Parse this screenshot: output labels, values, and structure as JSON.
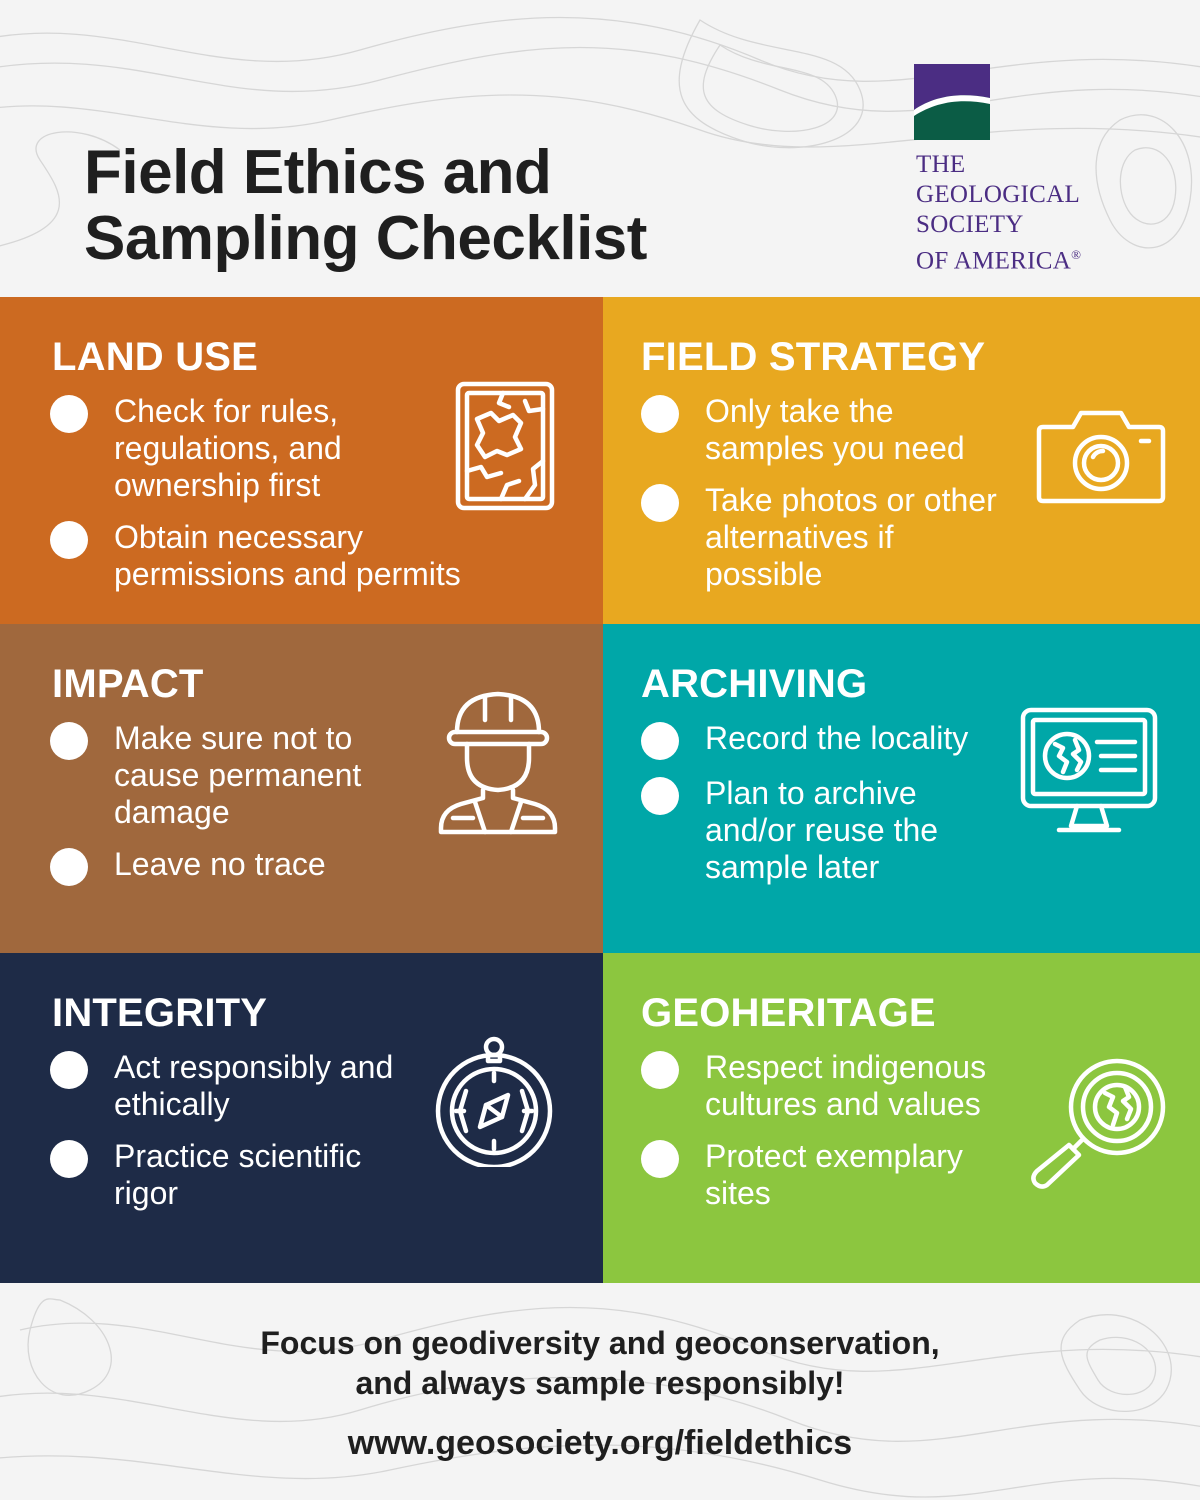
{
  "header": {
    "title_line1": "Field Ethics and",
    "title_line2": "Sampling Checklist",
    "logo": {
      "line1": "THE",
      "line2": "GEOLOGICAL",
      "line3": "SOCIETY",
      "line4": "OF AMERICA",
      "registered": "®",
      "colors": {
        "purple": "#4b2d83",
        "green": "#0b5c45"
      }
    }
  },
  "sections": {
    "land_use": {
      "title": "LAND USE",
      "color": "#cc6a21",
      "icon": "map-icon",
      "items": [
        "Check for rules, regulations, and ownership first",
        "Obtain necessary permissions and permits"
      ]
    },
    "field_strategy": {
      "title": "FIELD STRATEGY",
      "color": "#e8a820",
      "icon": "camera-icon",
      "items": [
        "Only take the samples you need",
        "Take photos or other alternatives if possible"
      ]
    },
    "impact": {
      "title": "IMPACT",
      "color": "#a0683d",
      "icon": "worker-icon",
      "items": [
        "Make sure not to cause permanent damage",
        "Leave no trace"
      ]
    },
    "archiving": {
      "title": "ARCHIVING",
      "color": "#00a7a8",
      "icon": "monitor-globe-icon",
      "items": [
        "Record the locality",
        "Plan to archive and/or reuse the sample later"
      ]
    },
    "integrity": {
      "title": "INTEGRITY",
      "color": "#1e2b47",
      "icon": "compass-icon",
      "items": [
        "Act responsibly and ethically",
        "Practice scientific rigor"
      ]
    },
    "geoheritage": {
      "title": "GEOHERITAGE",
      "color": "#8cc63f",
      "icon": "magnifier-globe-icon",
      "items": [
        "Respect indigenous cultures and values",
        "Protect exemplary sites"
      ]
    }
  },
  "footer": {
    "tagline_line1": "Focus on geodiversity and geoconservation,",
    "tagline_line2": "and always sample responsibly!",
    "url": "www.geosociety.org/fieldethics"
  }
}
